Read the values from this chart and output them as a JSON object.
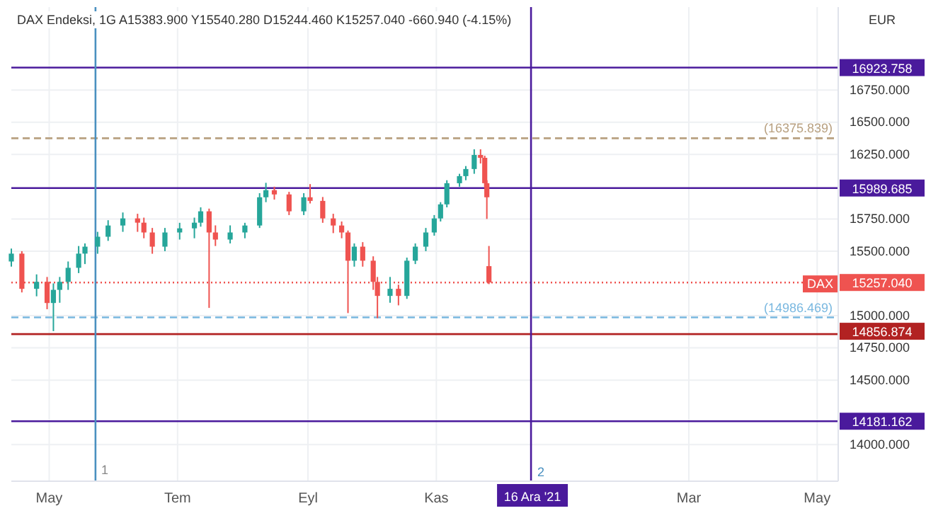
{
  "chart_data": {
    "type": "candlestick",
    "title": "DAX Endeksi, 1G  A15383.900 Y15540.280 D15244.460 K15257.040 -660.940 (-4.15%)",
    "x": [
      "2021-04-13",
      "2021-04-18",
      "2021-04-25",
      "2021-04-30",
      "2021-05-03",
      "2021-05-06",
      "2021-05-10",
      "2021-05-15",
      "2021-05-18",
      "2021-05-24",
      "2021-05-29",
      "2021-06-05",
      "2021-06-12",
      "2021-06-15",
      "2021-06-19",
      "2021-06-25",
      "2021-07-02",
      "2021-07-09",
      "2021-07-12",
      "2021-07-16",
      "2021-07-19",
      "2021-07-26",
      "2021-08-02",
      "2021-08-09",
      "2021-08-12",
      "2021-08-16",
      "2021-08-23",
      "2021-08-30",
      "2021-09-02",
      "2021-09-08",
      "2021-09-13",
      "2021-09-17",
      "2021-09-20",
      "2021-09-23",
      "2021-09-27",
      "2021-10-02",
      "2021-10-04",
      "2021-10-10",
      "2021-10-14",
      "2021-10-18",
      "2021-10-22",
      "2021-10-27",
      "2021-10-31",
      "2021-11-03",
      "2021-11-06",
      "2021-11-12",
      "2021-11-15",
      "2021-11-19",
      "2021-11-22",
      "2021-11-24",
      "2021-11-25",
      "2021-11-26"
    ],
    "ohlc": [
      [
        15420,
        15520,
        15380,
        15481
      ],
      [
        15481,
        15500,
        15180,
        15208
      ],
      [
        15208,
        15320,
        15150,
        15262
      ],
      [
        15262,
        15300,
        15050,
        15098
      ],
      [
        15098,
        15250,
        14880,
        15200
      ],
      [
        15200,
        15300,
        15100,
        15262
      ],
      [
        15262,
        15420,
        15200,
        15371
      ],
      [
        15371,
        15540,
        15330,
        15481
      ],
      [
        15481,
        15560,
        15400,
        15535
      ],
      [
        15535,
        15650,
        15480,
        15612
      ],
      [
        15612,
        15740,
        15580,
        15699
      ],
      [
        15699,
        15800,
        15650,
        15754
      ],
      [
        15754,
        15790,
        15650,
        15721
      ],
      [
        15721,
        15760,
        15600,
        15645
      ],
      [
        15645,
        15680,
        15480,
        15535
      ],
      [
        15535,
        15680,
        15500,
        15645
      ],
      [
        15645,
        15720,
        15590,
        15677
      ],
      [
        15677,
        15760,
        15600,
        15721
      ],
      [
        15721,
        15840,
        15690,
        15809
      ],
      [
        15809,
        15830,
        15060,
        15645
      ],
      [
        15645,
        15700,
        15540,
        15590
      ],
      [
        15590,
        15700,
        15560,
        15645
      ],
      [
        15645,
        15720,
        15600,
        15699
      ],
      [
        15699,
        15950,
        15680,
        15918
      ],
      [
        15918,
        16030,
        15880,
        15973
      ],
      [
        15973,
        16000,
        15900,
        15940
      ],
      [
        15940,
        15960,
        15780,
        15809
      ],
      [
        15809,
        15950,
        15780,
        15918
      ],
      [
        15918,
        16020,
        15870,
        15890
      ],
      [
        15890,
        15920,
        15720,
        15754
      ],
      [
        15754,
        15790,
        15640,
        15699
      ],
      [
        15699,
        15730,
        15600,
        15645
      ],
      [
        15645,
        15660,
        15020,
        15426
      ],
      [
        15426,
        15560,
        15380,
        15535
      ],
      [
        15535,
        15570,
        15380,
        15426
      ],
      [
        15426,
        15460,
        15200,
        15262
      ],
      [
        15262,
        15300,
        14980,
        15153
      ],
      [
        15153,
        15300,
        15100,
        15208
      ],
      [
        15208,
        15240,
        15080,
        15153
      ],
      [
        15153,
        15450,
        15130,
        15426
      ],
      [
        15426,
        15560,
        15400,
        15535
      ],
      [
        15535,
        15680,
        15500,
        15645
      ],
      [
        15645,
        15780,
        15620,
        15754
      ],
      [
        15754,
        15880,
        15730,
        15863
      ],
      [
        15863,
        16050,
        15840,
        16027
      ],
      [
        16027,
        16100,
        16000,
        16082
      ],
      [
        16082,
        16160,
        16050,
        16137
      ],
      [
        16137,
        16290,
        16100,
        16246
      ],
      [
        16246,
        16290,
        16180,
        16224
      ],
      [
        16224,
        16240,
        16000,
        16027
      ],
      [
        16027,
        16050,
        15750,
        15918
      ],
      [
        15383.9,
        15540.28,
        15244.46,
        15257.04
      ]
    ],
    "colors": [
      "#26a69a",
      "#ef5350",
      "#26a69a",
      "#ef5350",
      "#26a69a",
      "#26a69a",
      "#26a69a",
      "#26a69a",
      "#26a69a",
      "#26a69a",
      "#26a69a",
      "#26a69a",
      "#ef5350",
      "#ef5350",
      "#ef5350",
      "#26a69a",
      "#26a69a",
      "#26a69a",
      "#26a69a",
      "#ef5350",
      "#ef5350",
      "#26a69a",
      "#26a69a",
      "#26a69a",
      "#26a69a",
      "#ef5350",
      "#ef5350",
      "#26a69a",
      "#ef5350",
      "#ef5350",
      "#ef5350",
      "#ef5350",
      "#ef5350",
      "#26a69a",
      "#ef5350",
      "#ef5350",
      "#ef5350",
      "#26a69a",
      "#ef5350",
      "#26a69a",
      "#26a69a",
      "#26a69a",
      "#26a69a",
      "#26a69a",
      "#26a69a",
      "#26a69a",
      "#26a69a",
      "#26a69a",
      "#ef5350",
      "#ef5350",
      "#ef5350",
      "#ef5350"
    ],
    "xlim": [
      "2021-04-13",
      "2022-05-11"
    ],
    "xticks": [
      {
        "value": "2021-05-01",
        "label": "May"
      },
      {
        "value": "2021-07-01",
        "label": "Tem"
      },
      {
        "value": "2021-09-01",
        "label": "Eyl"
      },
      {
        "value": "2021-11-01",
        "label": "Kas"
      },
      {
        "value": "2022-03-01",
        "label": "Mar"
      },
      {
        "value": "2022-05-01",
        "label": "May"
      }
    ],
    "ylim": [
      13716,
      17393
    ],
    "yticks": [
      {
        "value": 14000,
        "label": "14000.000"
      },
      {
        "value": 14500,
        "label": "14500.000"
      },
      {
        "value": 14750,
        "label": "14750.000"
      },
      {
        "value": 15000,
        "label": "15000.000"
      },
      {
        "value": 15500,
        "label": "15500.000"
      },
      {
        "value": 15750,
        "label": "15750.000"
      },
      {
        "value": 16250,
        "label": "16250.000"
      },
      {
        "value": 16500,
        "label": "16500.000"
      },
      {
        "value": 16750,
        "label": "16750.000"
      }
    ],
    "grid": true,
    "ref_lines": [
      {
        "axis": "y",
        "value": 16923.758,
        "label": "16923.758",
        "color": "#4a1a9c",
        "line_style": "solid"
      },
      {
        "axis": "y",
        "value": 16375.839,
        "label": "(16375.839)",
        "color": "#b8a080",
        "line_style": "dashed"
      },
      {
        "axis": "y",
        "value": 15989.685,
        "label": "15989.685",
        "color": "#4a1a9c",
        "line_style": "solid"
      },
      {
        "axis": "y",
        "value": 15257.04,
        "label": "15257.040",
        "color": "#ef5350",
        "line_style": "dotted"
      },
      {
        "axis": "y",
        "value": 14986.469,
        "label": "(14986.469)",
        "color": "#7ab8e0",
        "line_style": "dashed"
      },
      {
        "axis": "y",
        "value": 14856.874,
        "label": "14856.874",
        "color": "#b22222",
        "line_style": "solid"
      },
      {
        "axis": "y",
        "value": 14181.162,
        "label": "14181.162",
        "color": "#4a1a9c",
        "line_style": "solid"
      },
      {
        "axis": "x",
        "value": "2021-05-23",
        "label": "1",
        "color": "#4a90c0",
        "line_style": "solid"
      },
      {
        "axis": "x",
        "value": "2021-12-16",
        "label": "16 Ara '21",
        "color": "#4a1a9c",
        "line_style": "solid"
      }
    ],
    "annotations": [
      "EUR",
      {
        "text": "DAX",
        "x": "2022-04-20",
        "y": 15257.04
      },
      {
        "text": "2",
        "x": "2021-12-19",
        "y": 13800
      }
    ]
  }
}
